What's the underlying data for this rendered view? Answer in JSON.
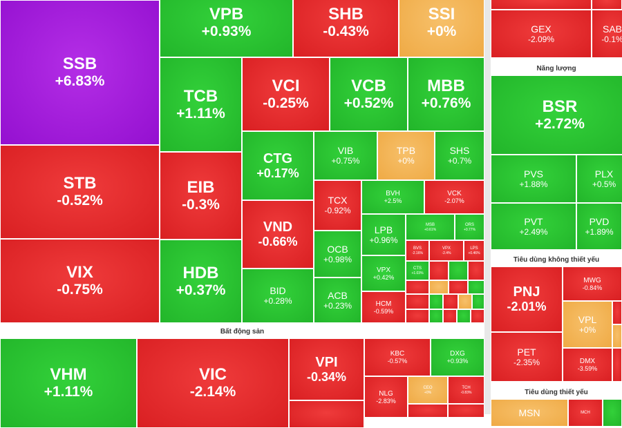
{
  "sections": {
    "bds": "Bất động sản",
    "nangluong": "Năng lượng",
    "tdktyeu": "Tiêu dùng không thiết yếu",
    "tdtyeu": "Tiêu dùng thiết yếu"
  },
  "tickers": {
    "vpb": {
      "t": "VPB",
      "v": "+0.93%"
    },
    "shb": {
      "t": "SHB",
      "v": "-0.43%"
    },
    "ssi": {
      "t": "SSI",
      "v": "+0%"
    },
    "ssb": {
      "t": "SSB",
      "v": "+6.83%"
    },
    "stb": {
      "t": "STB",
      "v": "-0.52%"
    },
    "vix": {
      "t": "VIX",
      "v": "-0.75%"
    },
    "tcb": {
      "t": "TCB",
      "v": "+1.11%"
    },
    "vci": {
      "t": "VCI",
      "v": "-0.25%"
    },
    "vcb": {
      "t": "VCB",
      "v": "+0.52%"
    },
    "mbb": {
      "t": "MBB",
      "v": "+0.76%"
    },
    "eib": {
      "t": "EIB",
      "v": "-0.3%"
    },
    "hdb": {
      "t": "HDB",
      "v": "+0.37%"
    },
    "ctg": {
      "t": "CTG",
      "v": "+0.17%"
    },
    "vnd": {
      "t": "VND",
      "v": "-0.66%"
    },
    "bid": {
      "t": "BID",
      "v": "+0.28%"
    },
    "vib": {
      "t": "VIB",
      "v": "+0.75%"
    },
    "tpb": {
      "t": "TPB",
      "v": "+0%"
    },
    "shs": {
      "t": "SHS",
      "v": "+0.7%"
    },
    "tcx": {
      "t": "TCX",
      "v": "-0.92%"
    },
    "ocb": {
      "t": "OCB",
      "v": "+0.98%"
    },
    "acb": {
      "t": "ACB",
      "v": "+0.23%"
    },
    "bvh": {
      "t": "BVH",
      "v": "+2.5%"
    },
    "vck": {
      "t": "VCK",
      "v": "-2.07%"
    },
    "lpb": {
      "t": "LPB",
      "v": "+0.96%"
    },
    "msb": {
      "t": "MSB",
      "v": "+0.61%"
    },
    "ors": {
      "t": "ORS",
      "v": "+0.77%"
    },
    "vpx": {
      "t": "VPX",
      "v": "+0.42%"
    },
    "hcm": {
      "t": "HCM",
      "v": "-0.59%"
    },
    "bvs": {
      "t": "BVS",
      "v": "-2.16%"
    },
    "vix2": {
      "t": "VPX",
      "v": "-2.4%"
    },
    "lps": {
      "t": "LPS",
      "v": "+0.46%"
    },
    "cts": {
      "t": "CTS",
      "v": "+1.03%"
    },
    "gex": {
      "t": "GEX",
      "v": "-2.09%"
    },
    "sab": {
      "t": "SAB",
      "v": "-0.1%"
    },
    "bsr": {
      "t": "BSR",
      "v": "+2.72%"
    },
    "pvs": {
      "t": "PVS",
      "v": "+1.88%"
    },
    "plx": {
      "t": "PLX",
      "v": "+0.5%"
    },
    "pvt": {
      "t": "PVT",
      "v": "+2.49%"
    },
    "pvd": {
      "t": "PVD",
      "v": "+1.89%"
    },
    "pnj": {
      "t": "PNJ",
      "v": "-2.01%"
    },
    "mwg": {
      "t": "MWG",
      "v": "-0.84%"
    },
    "vpl": {
      "t": "VPL",
      "v": "+0%"
    },
    "pet": {
      "t": "PET",
      "v": "-2.35%"
    },
    "dmx": {
      "t": "DMX",
      "v": "-3.59%"
    },
    "vhm": {
      "t": "VHM",
      "v": "+1.11%"
    },
    "vic": {
      "t": "VIC",
      "v": "-2.14%"
    },
    "vpi": {
      "t": "VPI",
      "v": "-0.34%"
    },
    "kbc": {
      "t": "KBC",
      "v": "-0.57%"
    },
    "dxg": {
      "t": "DXG",
      "v": "+0.93%"
    },
    "nlg": {
      "t": "NLG",
      "v": "-2.83%"
    },
    "ceo": {
      "t": "CEO",
      "v": "+0%"
    },
    "tch": {
      "t": "TCH",
      "v": "-0.83%"
    },
    "msn": {
      "t": "MSN",
      "v": ""
    },
    "mch": {
      "t": "MCH",
      "v": ""
    }
  },
  "colors": {
    "green": "#22b52a",
    "red": "#d91f22",
    "yellow": "#efaa45",
    "purple": "#9410d0"
  }
}
